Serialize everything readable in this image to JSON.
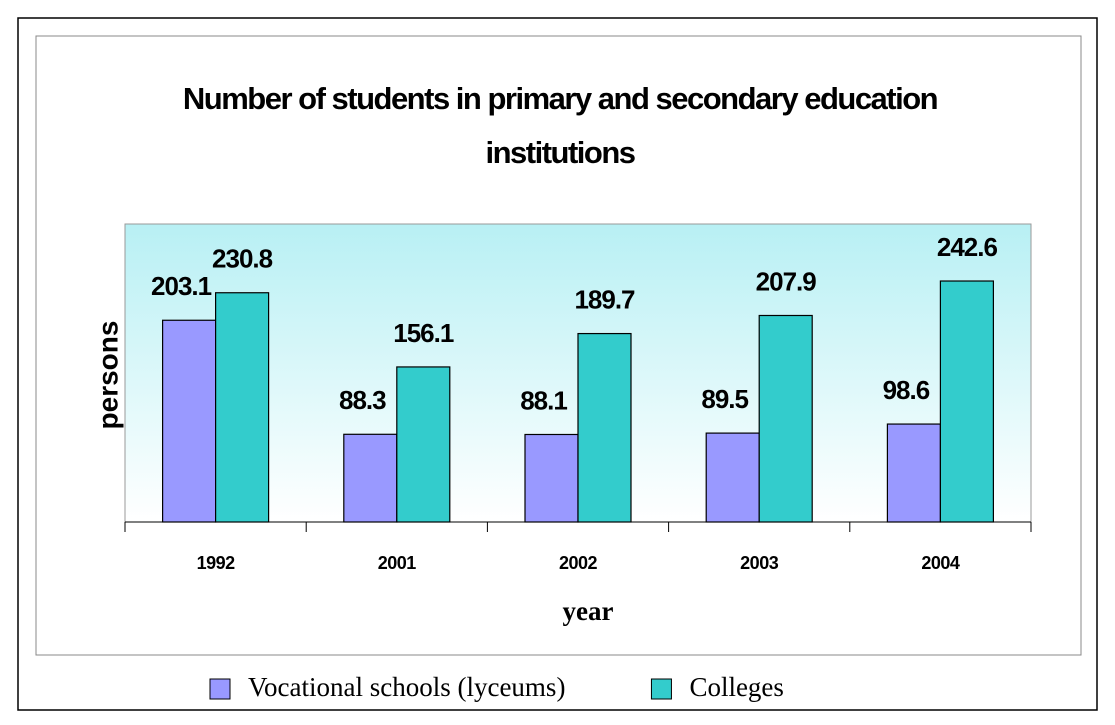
{
  "chart_data": {
    "type": "bar",
    "title": "Number of students in primary and secondary education institutions",
    "xlabel": "year",
    "ylabel": "persons",
    "categories": [
      "1992",
      "2001",
      "2002",
      "2003",
      "2004"
    ],
    "series": [
      {
        "name": "Vocational schools (lyceums)",
        "color": "#9999ff",
        "values": [
          203.1,
          88.3,
          88.1,
          89.5,
          98.6
        ]
      },
      {
        "name": "Colleges",
        "color": "#33cccc",
        "values": [
          230.8,
          156.1,
          189.7,
          207.9,
          242.6
        ]
      }
    ],
    "ylim": [
      0,
      300
    ],
    "legend": "bottom"
  }
}
